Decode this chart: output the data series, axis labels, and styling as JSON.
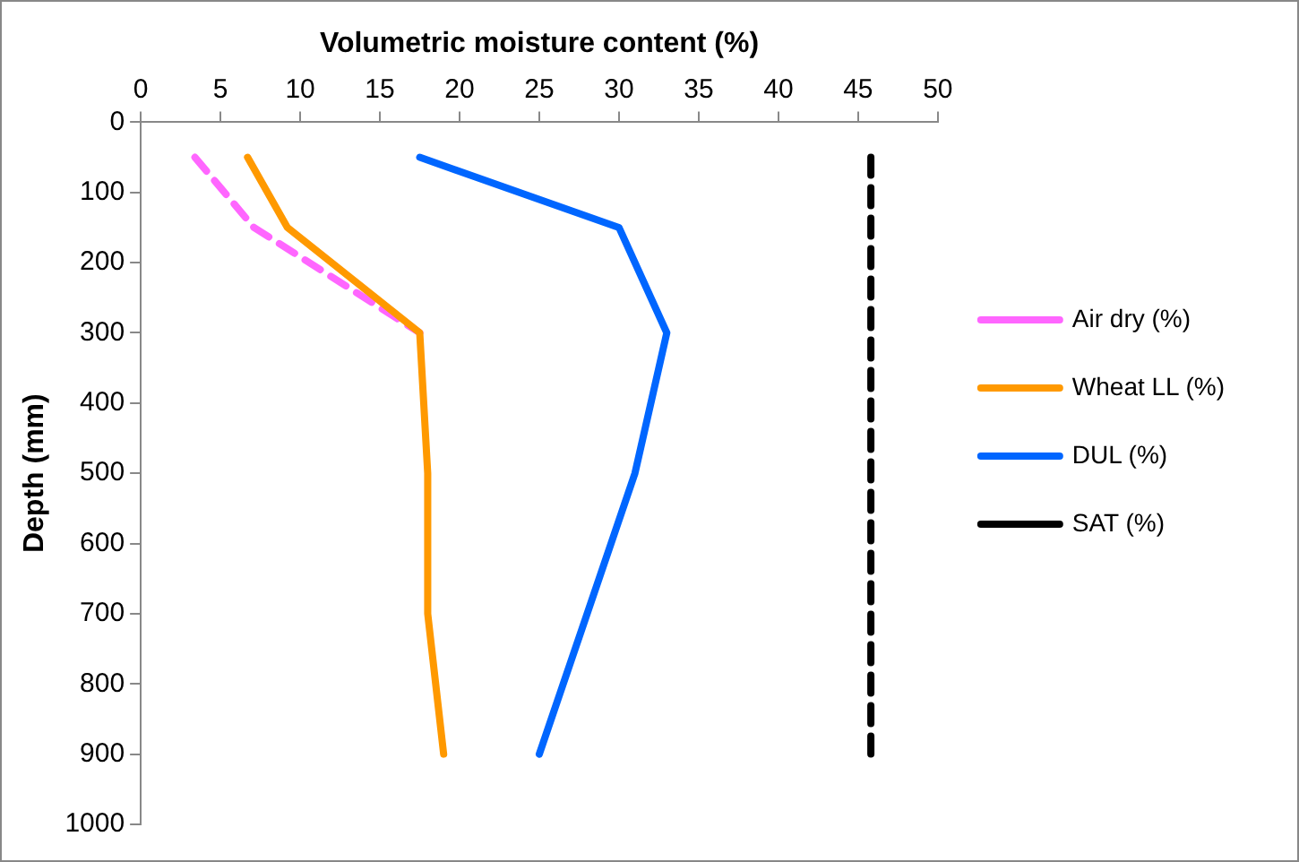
{
  "chart_data": {
    "type": "line",
    "xlabel": "Volumetric moisture content (%)",
    "ylabel": "Depth (mm)",
    "xlim": [
      0,
      50
    ],
    "xticks": [
      0,
      5,
      10,
      15,
      20,
      25,
      30,
      35,
      40,
      45,
      50
    ],
    "ylim": [
      1000,
      0
    ],
    "yticks": [
      0,
      100,
      200,
      300,
      400,
      500,
      600,
      700,
      800,
      900,
      1000
    ],
    "grid": false,
    "legend": "right",
    "marker": "none",
    "series": [
      {
        "name": "Air dry (%)",
        "color": "#ff66ff",
        "line_style": "dashed",
        "x": [
          3.4,
          7.1,
          17.5
        ],
        "values": [
          50,
          150,
          300
        ]
      },
      {
        "name": "Wheat LL (%)",
        "color": "#ff9900",
        "line_style": "solid",
        "x": [
          6.7,
          9.2,
          17.5,
          18,
          18,
          19
        ],
        "values": [
          50,
          150,
          300,
          500,
          700,
          900
        ]
      },
      {
        "name": "DUL (%)",
        "color": "#0066ff",
        "line_style": "solid",
        "x": [
          17.5,
          30,
          33,
          31,
          28,
          25
        ],
        "values": [
          50,
          150,
          300,
          500,
          700,
          900
        ]
      },
      {
        "name": "SAT (%)",
        "color": "#000000",
        "line_style": "dashed",
        "x": [
          45.8,
          45.8,
          45.8,
          45.8,
          45.8,
          45.8
        ],
        "values": [
          50,
          150,
          300,
          500,
          700,
          900
        ]
      }
    ]
  }
}
